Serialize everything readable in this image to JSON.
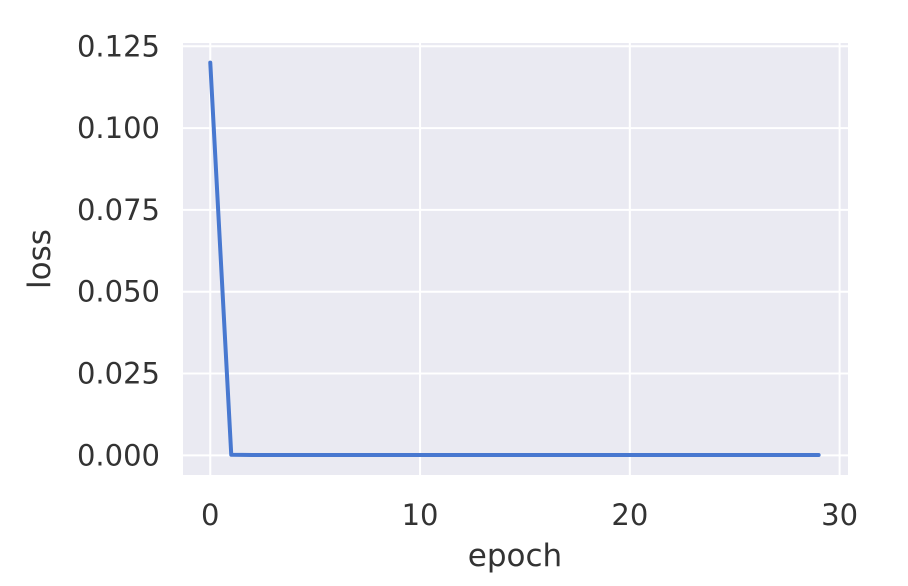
{
  "chart_data": {
    "type": "line",
    "title": "",
    "xlabel": "epoch",
    "ylabel": "loss",
    "xlim": [
      -1.3,
      30.4
    ],
    "ylim": [
      -0.006,
      0.126
    ],
    "x_ticks": [
      0,
      10,
      20,
      30
    ],
    "x_tick_labels": [
      "0",
      "10",
      "20",
      "30"
    ],
    "y_ticks": [
      0,
      0.025,
      0.05,
      0.075,
      0.1,
      0.125
    ],
    "y_tick_labels": [
      "0.000",
      "0.025",
      "0.050",
      "0.075",
      "0.100",
      "0.125"
    ],
    "grid": true,
    "legend": "none",
    "colors": {
      "background": "#eaeaf2",
      "grid": "#ffffff",
      "line": "#4878d0",
      "text": "#333333"
    },
    "series": [
      {
        "x": [
          0,
          1,
          2,
          3,
          4,
          5,
          6,
          7,
          8,
          9,
          10,
          11,
          12,
          13,
          14,
          15,
          16,
          17,
          18,
          19,
          20,
          21,
          22,
          23,
          24,
          25,
          26,
          27,
          28,
          29
        ],
        "values": [
          0.12,
          0.0002,
          0.0001,
          0.0001,
          0.0001,
          0.0001,
          0.0001,
          0.0001,
          0.0001,
          0.0001,
          0.0001,
          0.0001,
          0.0001,
          0.0001,
          0.0001,
          0.0001,
          0.0001,
          0.0001,
          0.0001,
          0.0001,
          0.0001,
          0.0001,
          0.0001,
          0.0001,
          0.0001,
          0.0001,
          0.0001,
          0.0001,
          0.0001,
          0.0001
        ]
      }
    ]
  }
}
